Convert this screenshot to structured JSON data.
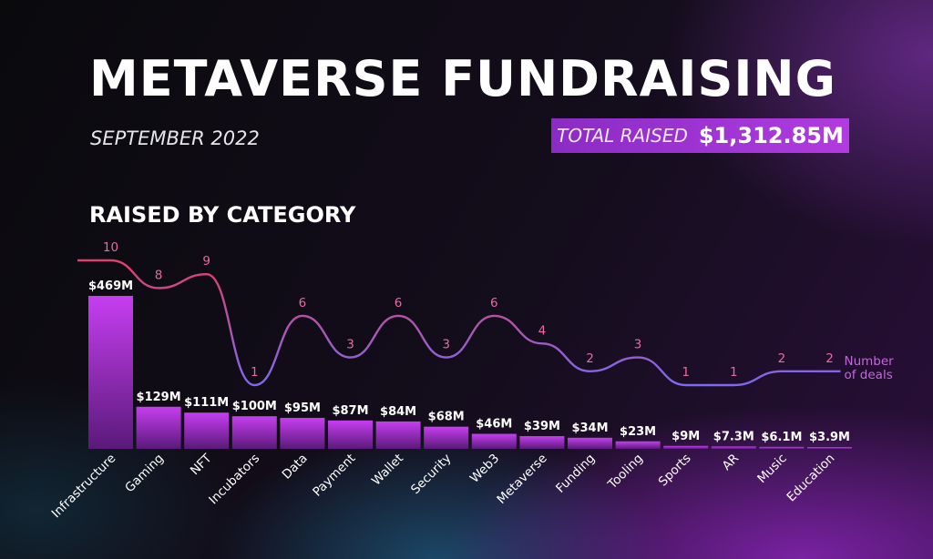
{
  "header": {
    "title": "METAVERSE FUNDRAISING",
    "subtitle": "SEPTEMBER 2022",
    "total_label": "TOTAL RAISED",
    "total_value": "$1,312.85M"
  },
  "section_title": "RAISED BY CATEGORY",
  "colors": {
    "bar_top": "#c63ef0",
    "bar_bottom": "#5a1a7a",
    "line_start": "#e0406c",
    "line_end": "#7a6af0",
    "total_box": "#a534d6"
  },
  "chart_data": {
    "type": "bar",
    "title": "RAISED BY CATEGORY",
    "categories": [
      "Infrastructure",
      "Gaming",
      "NFT",
      "Incubators",
      "Data",
      "Payment",
      "Wallet",
      "Security",
      "Web3",
      "Metaverse",
      "Funding",
      "Tooling",
      "Sports",
      "AR",
      "Music",
      "Education"
    ],
    "series": [
      {
        "type": "bar",
        "values": [
          469,
          129,
          111,
          100,
          95,
          87,
          84,
          68,
          46,
          39,
          34,
          23,
          9,
          7.3,
          6.1,
          3.9
        ],
        "labels": [
          "$469M",
          "$129M",
          "$111M",
          "$100M",
          "$95M",
          "$87M",
          "$84M",
          "$68M",
          "$46M",
          "$39M",
          "$34M",
          "$23M",
          "$9M",
          "$7.3M",
          "$6.1M",
          "$3.9M"
        ]
      },
      {
        "name": "Number of deals",
        "type": "line",
        "values": [
          10,
          8,
          9,
          1,
          6,
          3,
          6,
          3,
          6,
          4,
          2,
          3,
          1,
          1,
          2,
          2
        ]
      }
    ],
    "ylim": [
      0,
      469
    ],
    "deals_ylim": [
      1,
      10
    ],
    "grid": false,
    "legend_position": "right"
  }
}
